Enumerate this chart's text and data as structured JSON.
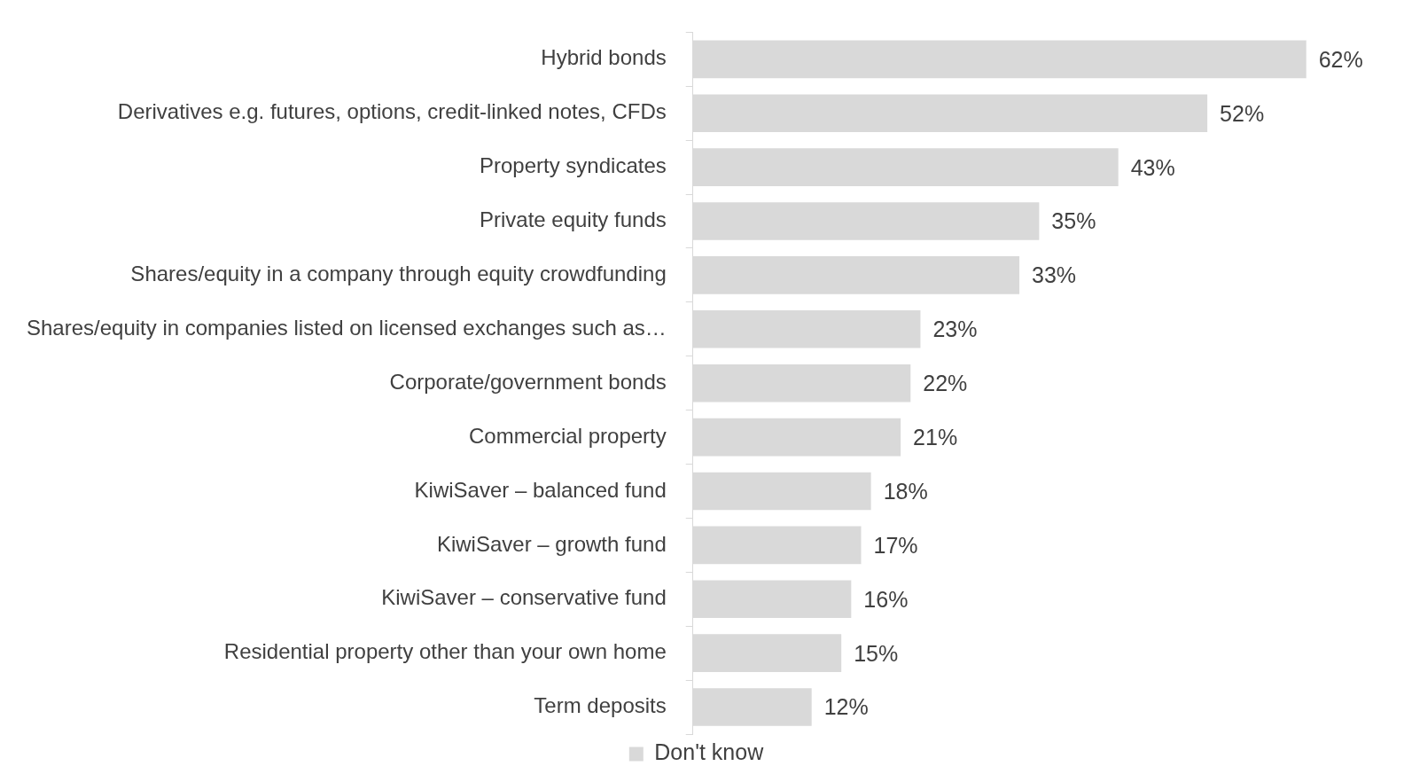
{
  "chart_data": {
    "type": "bar",
    "orientation": "horizontal",
    "categories": [
      "Hybrid bonds",
      "Derivatives e.g. futures, options, credit-linked notes, CFDs",
      "Property syndicates",
      "Private equity funds",
      "Shares/equity in a company through equity crowdfunding",
      "Shares/equity in companies listed on licensed exchanges such as…",
      "Corporate/government bonds",
      "Commercial property",
      "KiwiSaver – balanced fund",
      "KiwiSaver – growth fund",
      "KiwiSaver – conservative fund",
      "Residential property other than your own home",
      "Term deposits"
    ],
    "series": [
      {
        "name": "Don't know",
        "color": "#d9d9d9",
        "values": [
          62,
          52,
          43,
          35,
          33,
          23,
          22,
          21,
          18,
          17,
          16,
          15,
          12
        ],
        "value_labels": [
          "62%",
          "52%",
          "43%",
          "35%",
          "33%",
          "23%",
          "22%",
          "21%",
          "18%",
          "17%",
          "16%",
          "15%",
          "12%"
        ]
      }
    ],
    "legend": "bottom"
  }
}
